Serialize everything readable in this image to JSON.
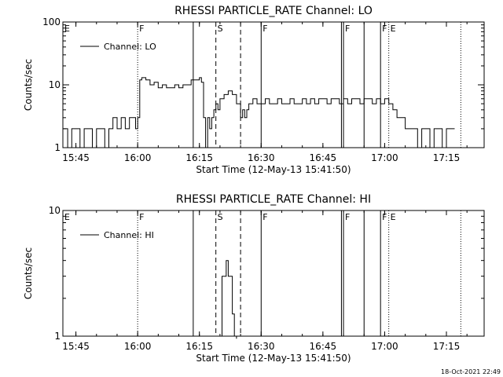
{
  "footer": {
    "timestamp": "18-Oct-2021 22:49"
  },
  "chart_data": [
    {
      "type": "line",
      "title": "RHESSI PARTICLE_RATE Channel: LO",
      "xlabel": "Start Time (12-May-13 15:41:50)",
      "ylabel": "Counts/sec",
      "yscale": "log",
      "ylim": [
        1,
        100
      ],
      "xlim": [
        "15:41:50",
        "17:24:10"
      ],
      "x_ticks": [
        "15:45",
        "16:00",
        "16:15",
        "16:30",
        "16:45",
        "17:00",
        "17:15"
      ],
      "y_ticks": [
        {
          "value": 1,
          "label": "1"
        },
        {
          "value": 10,
          "label": "10"
        },
        {
          "value": 100,
          "label": "100"
        }
      ],
      "grid": false,
      "legend_position": "top-left",
      "series": [
        {
          "name": "Channel: LO",
          "x": [
            "15:42:00",
            "15:43:00",
            "15:44:00",
            "15:45:00",
            "15:46:00",
            "15:47:00",
            "15:48:00",
            "15:49:00",
            "15:50:00",
            "15:51:00",
            "15:52:00",
            "15:53:00",
            "15:54:00",
            "15:55:00",
            "15:56:00",
            "15:57:00",
            "15:58:00",
            "15:59:00",
            "15:59:30",
            "16:00:00",
            "16:00:30",
            "16:01:00",
            "16:02:00",
            "16:03:00",
            "16:04:00",
            "16:05:00",
            "16:06:00",
            "16:07:00",
            "16:08:00",
            "16:09:00",
            "16:10:00",
            "16:11:00",
            "16:12:00",
            "16:13:00",
            "16:14:00",
            "16:15:00",
            "16:15:30",
            "16:16:00",
            "16:16:30",
            "16:17:00",
            "16:17:30",
            "16:18:00",
            "16:18:30",
            "16:19:00",
            "16:19:30",
            "16:20:00",
            "16:21:00",
            "16:22:00",
            "16:23:00",
            "16:24:00",
            "16:25:00",
            "16:25:30",
            "16:26:00",
            "16:26:30",
            "16:27:00",
            "16:28:00",
            "16:29:00",
            "16:30:00",
            "16:31:00",
            "16:32:00",
            "16:33:00",
            "16:34:00",
            "16:35:00",
            "16:36:00",
            "16:37:00",
            "16:38:00",
            "16:39:00",
            "16:40:00",
            "16:41:00",
            "16:42:00",
            "16:43:00",
            "16:44:00",
            "16:45:00",
            "16:46:00",
            "16:47:00",
            "16:48:00",
            "16:49:00",
            "16:50:00",
            "16:51:00",
            "16:52:00",
            "16:53:00",
            "16:54:00",
            "16:55:00",
            "16:56:00",
            "16:57:00",
            "16:58:00",
            "16:59:00",
            "17:00:00",
            "17:01:00",
            "17:02:00",
            "17:03:00",
            "17:04:00",
            "17:05:00",
            "17:06:00",
            "17:07:00",
            "17:08:00",
            "17:09:00",
            "17:10:00",
            "17:11:00",
            "17:12:00",
            "17:13:00",
            "17:14:00",
            "17:15:00",
            "17:16:00",
            "17:17:00"
          ],
          "y": [
            2,
            1,
            2,
            2,
            1,
            2,
            2,
            1,
            2,
            2,
            1,
            2,
            3,
            2,
            3,
            2,
            3,
            3,
            2,
            3,
            12,
            13,
            12,
            10,
            11,
            9,
            10,
            9,
            9,
            10,
            9,
            10,
            10,
            12,
            12,
            13,
            11,
            3,
            1,
            3,
            2,
            3,
            4,
            5,
            4,
            6,
            7,
            8,
            7,
            5,
            3,
            4,
            3,
            4,
            5,
            6,
            5,
            5,
            6,
            5,
            5,
            6,
            5,
            5,
            6,
            5,
            5,
            6,
            5,
            6,
            5,
            6,
            6,
            5,
            6,
            6,
            5,
            6,
            5,
            6,
            6,
            5,
            6,
            6,
            5,
            6,
            5,
            6,
            5,
            4,
            3,
            3,
            2,
            2,
            2,
            1,
            2,
            2,
            1,
            2,
            2,
            1,
            2,
            2,
            2
          ]
        }
      ],
      "annotations": [
        {
          "label": "E",
          "time": "15:41:50",
          "style": "none"
        },
        {
          "label": "F",
          "time": "16:00:00",
          "style": "dotted"
        },
        {
          "label": "",
          "time": "16:13:30",
          "style": "solid"
        },
        {
          "label": "S",
          "time": "16:19:00",
          "style": "dashed"
        },
        {
          "label": "",
          "time": "16:25:00",
          "style": "dashed"
        },
        {
          "label": "F",
          "time": "16:30:00",
          "style": "solid"
        },
        {
          "label": "",
          "time": "16:49:30",
          "style": "solid"
        },
        {
          "label": "F",
          "time": "16:50:00",
          "style": "solid"
        },
        {
          "label": "",
          "time": "16:55:00",
          "style": "solid"
        },
        {
          "label": "F",
          "time": "16:59:00",
          "style": "solid"
        },
        {
          "label": "E",
          "time": "17:01:00",
          "style": "dotted"
        },
        {
          "label": "",
          "time": "17:18:30",
          "style": "dotted"
        }
      ]
    },
    {
      "type": "line",
      "title": "RHESSI PARTICLE_RATE Channel: HI",
      "xlabel": "Start Time (12-May-13 15:41:50)",
      "ylabel": "Counts/sec",
      "yscale": "log",
      "ylim": [
        1,
        10
      ],
      "xlim": [
        "15:41:50",
        "17:24:10"
      ],
      "x_ticks": [
        "15:45",
        "16:00",
        "16:15",
        "16:30",
        "16:45",
        "17:00",
        "17:15"
      ],
      "y_ticks": [
        {
          "value": 1,
          "label": "1"
        },
        {
          "value": 10,
          "label": "10"
        }
      ],
      "grid": false,
      "legend_position": "top-left",
      "series": [
        {
          "name": "Channel: HI",
          "x": [
            "16:20:00",
            "16:20:30",
            "16:21:00",
            "16:21:30",
            "16:22:00",
            "16:22:30",
            "16:23:00",
            "16:23:30",
            "16:24:00"
          ],
          "y": [
            1,
            3,
            3,
            4,
            3,
            3,
            1.5,
            1,
            0.9
          ]
        }
      ],
      "annotations": [
        {
          "label": "E",
          "time": "15:41:50",
          "style": "none"
        },
        {
          "label": "F",
          "time": "16:00:00",
          "style": "dotted"
        },
        {
          "label": "",
          "time": "16:13:30",
          "style": "solid"
        },
        {
          "label": "S",
          "time": "16:19:00",
          "style": "dashed"
        },
        {
          "label": "",
          "time": "16:25:00",
          "style": "dashed"
        },
        {
          "label": "F",
          "time": "16:30:00",
          "style": "solid"
        },
        {
          "label": "",
          "time": "16:49:30",
          "style": "solid"
        },
        {
          "label": "F",
          "time": "16:50:00",
          "style": "solid"
        },
        {
          "label": "",
          "time": "16:55:00",
          "style": "solid"
        },
        {
          "label": "F",
          "time": "16:59:00",
          "style": "solid"
        },
        {
          "label": "E",
          "time": "17:01:00",
          "style": "dotted"
        },
        {
          "label": "",
          "time": "17:18:30",
          "style": "dotted"
        }
      ]
    }
  ]
}
